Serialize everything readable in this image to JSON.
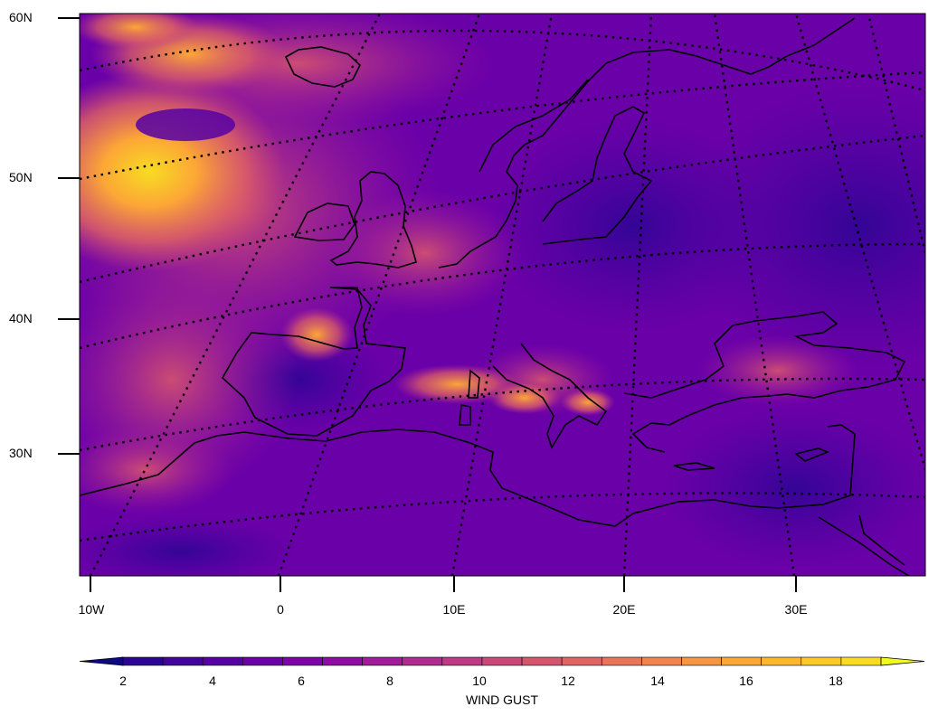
{
  "lat_labels": [
    "60N",
    "50N",
    "40N",
    "30N"
  ],
  "lon_labels": [
    "10W",
    "0",
    "10E",
    "20E",
    "30E"
  ],
  "colorbar": {
    "title": "WIND GUST",
    "tick_labels": [
      "2",
      "4",
      "6",
      "8",
      "10",
      "12",
      "14",
      "16",
      "18"
    ],
    "colors": [
      "#0d0887",
      "#2a0593",
      "#41049d",
      "#5601a4",
      "#6a00a8",
      "#7e03a8",
      "#8f0da4",
      "#a11b9b",
      "#b12a90",
      "#bf3984",
      "#cc4778",
      "#d6556d",
      "#e16462",
      "#ea7457",
      "#f2844b",
      "#f89540",
      "#fca636",
      "#feb72d",
      "#fdc926",
      "#f7dc22",
      "#f0f921"
    ]
  }
}
